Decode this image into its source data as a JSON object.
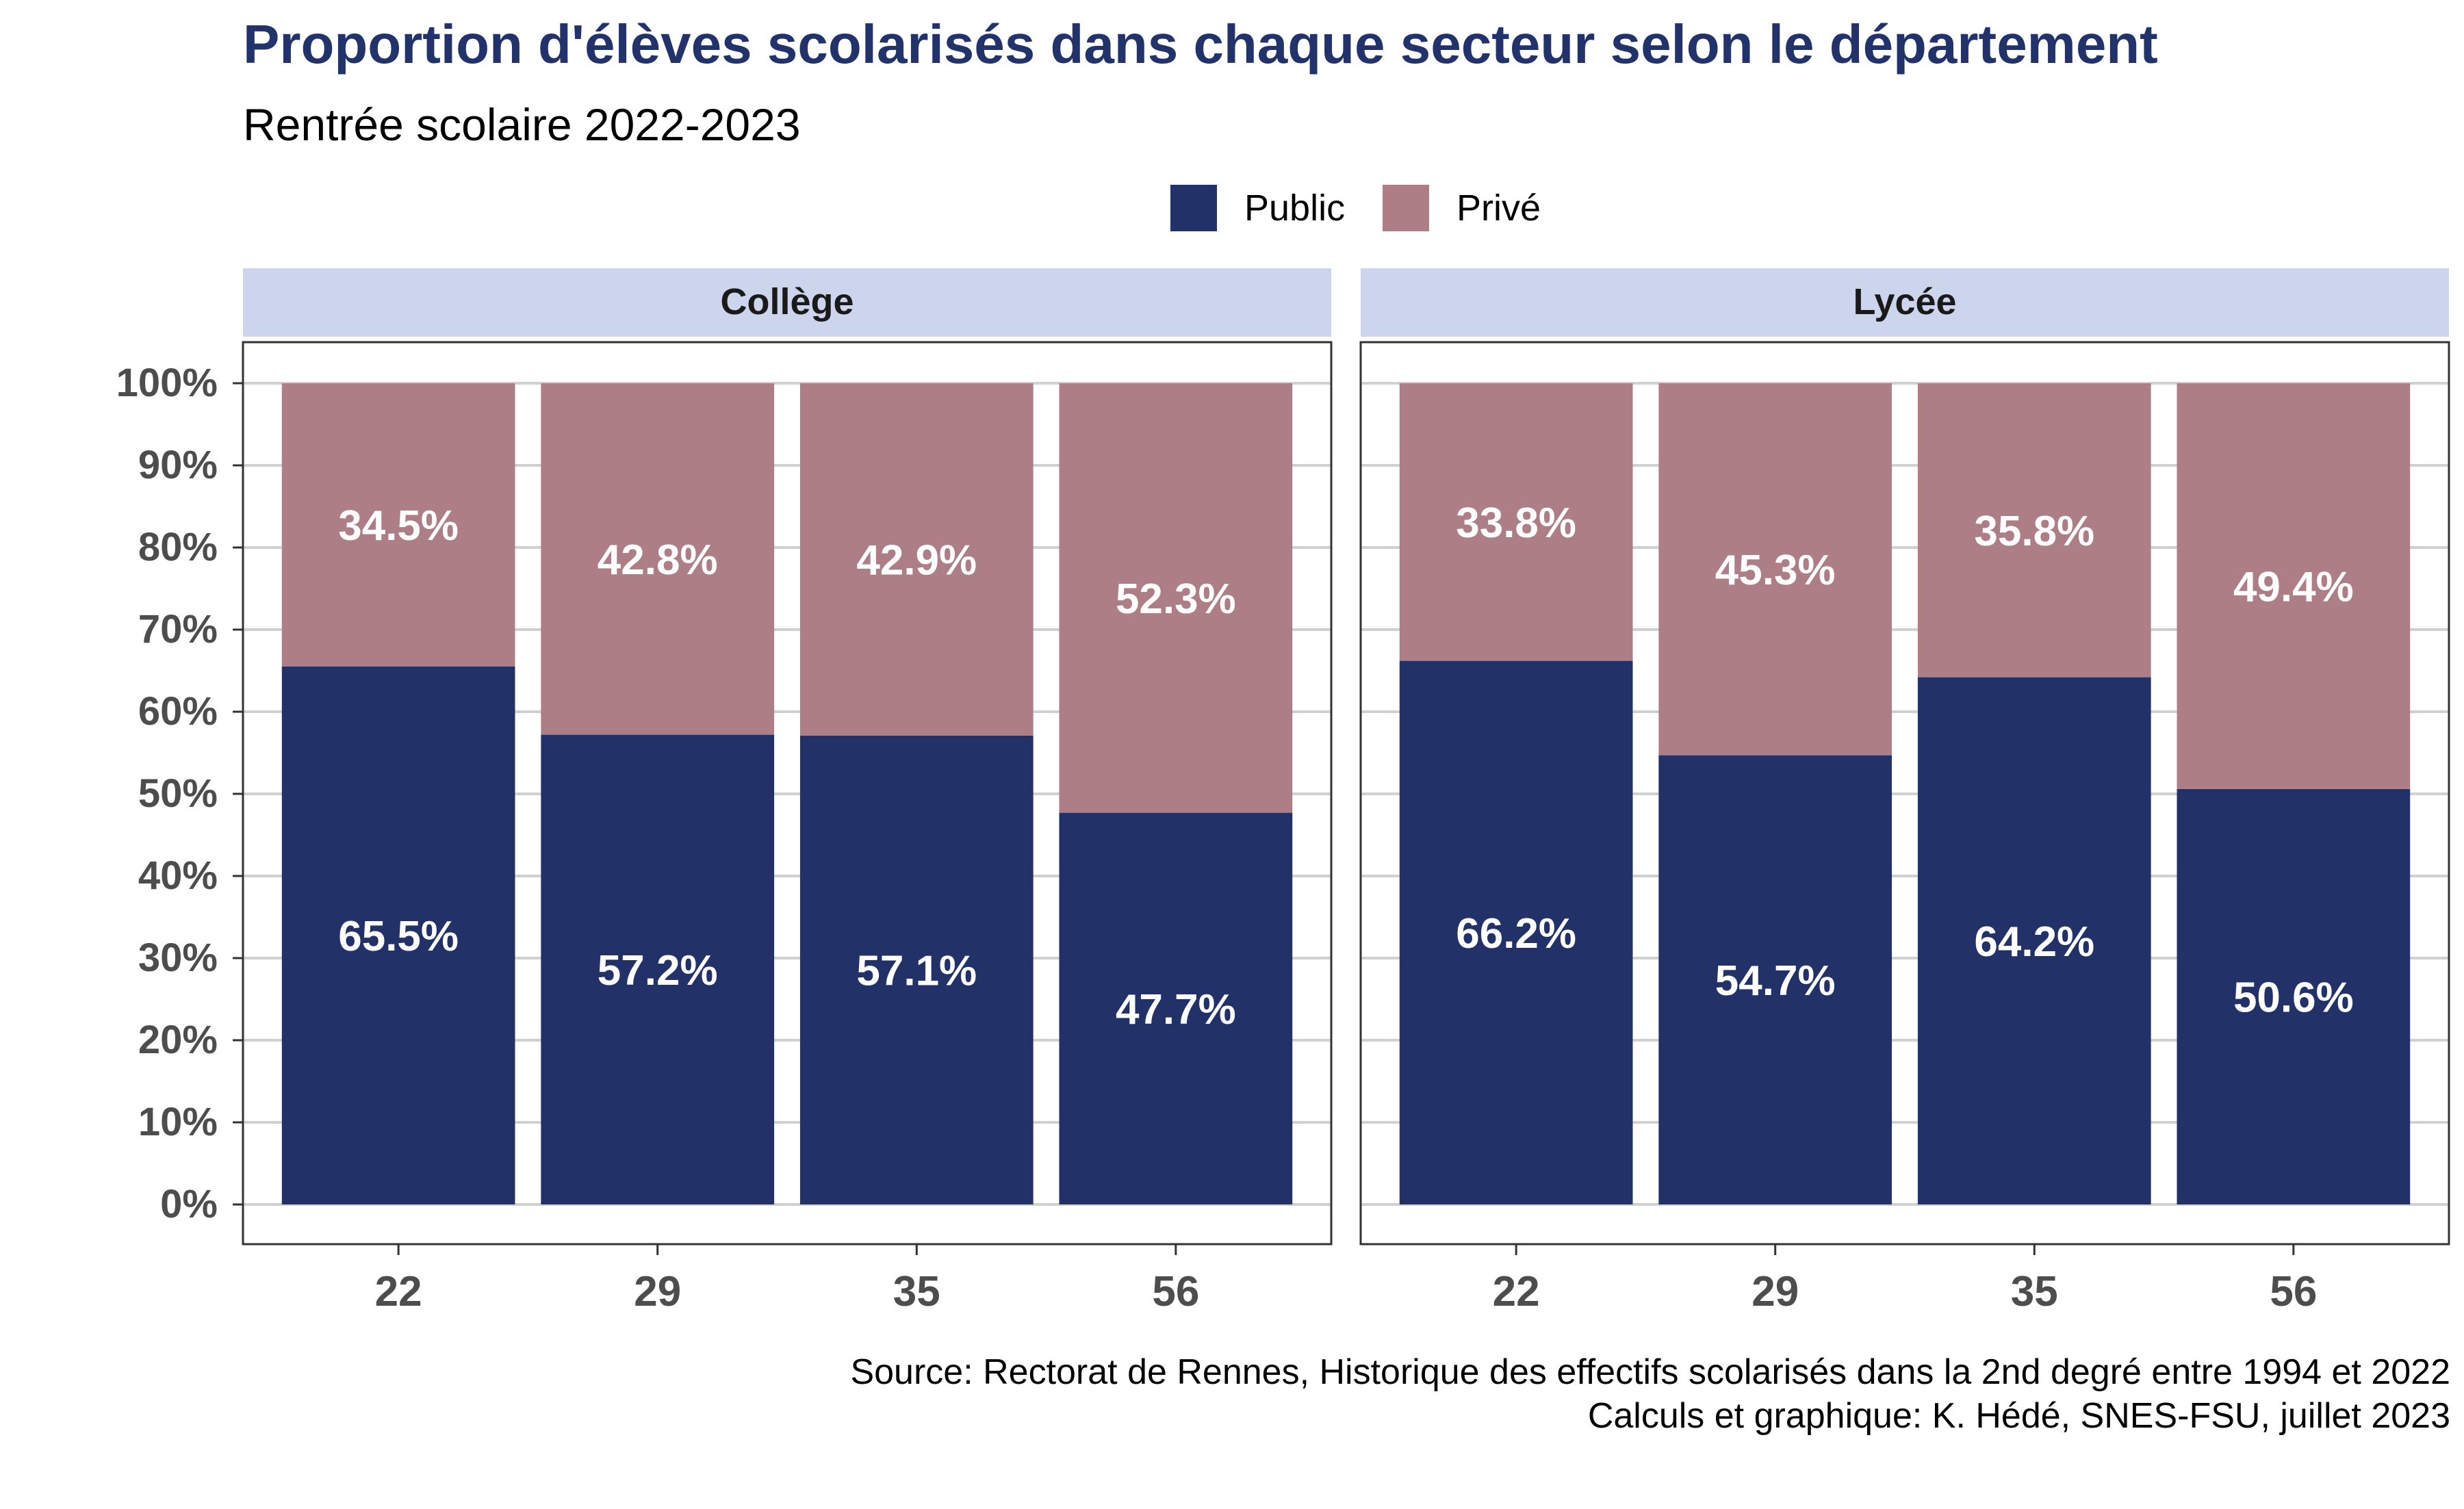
{
  "title": "Proportion d'élèves scolarisés dans chaque secteur selon le département",
  "subtitle": "Rentrée scolaire 2022-2023",
  "source_line1": "Source: Rectorat de Rennes, Historique des effectifs scolarisés dans la 2nd degré entre 1994 et 2022",
  "source_line2": "Calculs et graphique: K. Hédé, SNES-FSU, juillet 2023",
  "colors": {
    "title": "#22336b",
    "public": "#223268",
    "prive": "#ad7e86",
    "strip": "#cdd5ec",
    "grid": "#d0d0d0",
    "axis_text": "#4d4d4d"
  },
  "chart_data": {
    "type": "bar",
    "stacked": true,
    "legend_position": "top",
    "legend": [
      "Public",
      "Privé"
    ],
    "y_ticks": [
      "0%",
      "10%",
      "20%",
      "30%",
      "40%",
      "50%",
      "60%",
      "70%",
      "80%",
      "90%",
      "100%"
    ],
    "ylim": [
      0,
      100
    ],
    "grid": true,
    "facets": [
      {
        "name": "Collège",
        "categories": [
          "22",
          "29",
          "35",
          "56"
        ],
        "series": [
          {
            "name": "Public",
            "values": [
              65.5,
              57.2,
              57.1,
              47.7
            ],
            "labels": [
              "65.5%",
              "57.2%",
              "57.1%",
              "47.7%"
            ]
          },
          {
            "name": "Privé",
            "values": [
              34.5,
              42.8,
              42.9,
              52.3
            ],
            "labels": [
              "34.5%",
              "42.8%",
              "42.9%",
              "52.3%"
            ]
          }
        ]
      },
      {
        "name": "Lycée",
        "categories": [
          "22",
          "29",
          "35",
          "56"
        ],
        "series": [
          {
            "name": "Public",
            "values": [
              66.2,
              54.7,
              64.2,
              50.6
            ],
            "labels": [
              "66.2%",
              "54.7%",
              "64.2%",
              "50.6%"
            ]
          },
          {
            "name": "Privé",
            "values": [
              33.8,
              45.3,
              35.8,
              49.4
            ],
            "labels": [
              "33.8%",
              "45.3%",
              "35.8%",
              "49.4%"
            ]
          }
        ]
      }
    ]
  }
}
